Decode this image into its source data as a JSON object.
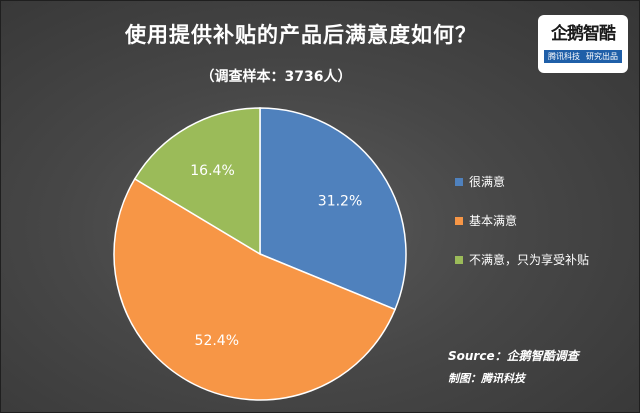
{
  "header": {
    "title": "使用提供补贴的产品后满意度如何？",
    "subtitle": "（调查样本：3736人）"
  },
  "logo": {
    "name": "企鹅智酷",
    "tags": [
      "腾讯科技",
      "研究出品"
    ]
  },
  "footer": {
    "source": "Source：企鹅智酷调查",
    "credit": "制图：腾讯科技"
  },
  "chart_data": {
    "type": "pie",
    "title": "使用提供补贴的产品后满意度如何？",
    "subtitle": "（调查样本：3736人）",
    "categories": [
      "很满意",
      "基本满意",
      "不满意，只为享受补贴"
    ],
    "values": [
      31.2,
      52.4,
      16.4
    ],
    "labels": [
      "31.2%",
      "52.4%",
      "16.4%"
    ],
    "colors": [
      "#4f81bd",
      "#f79646",
      "#9bbb59"
    ],
    "legend": "right"
  }
}
